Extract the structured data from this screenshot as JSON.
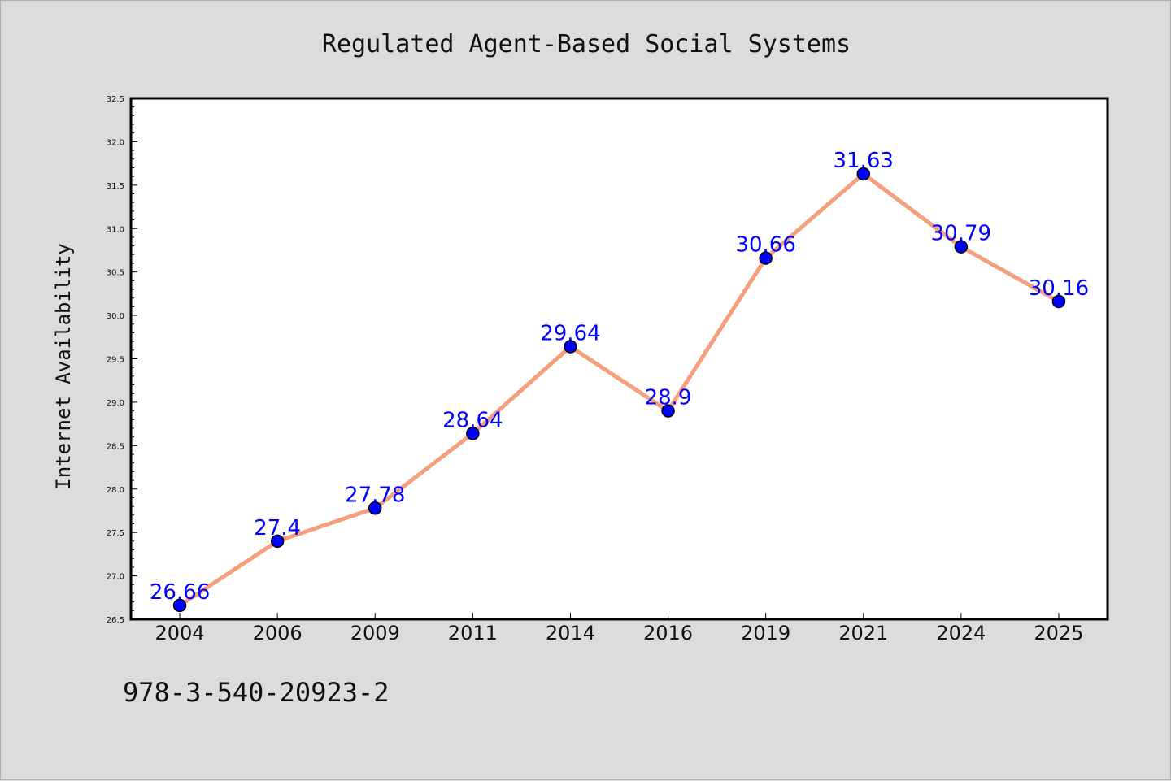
{
  "chart_data": {
    "type": "line",
    "title": "Regulated Agent-Based Social Systems",
    "xlabel": "",
    "ylabel": "Internet Availability",
    "categories": [
      "2004",
      "2006",
      "2009",
      "2011",
      "2014",
      "2016",
      "2019",
      "2021",
      "2024",
      "2025"
    ],
    "values": [
      26.66,
      27.4,
      27.78,
      28.64,
      29.64,
      28.9,
      30.66,
      31.63,
      30.79,
      30.16
    ],
    "data_labels": [
      "26.66",
      "27.4",
      "27.78",
      "28.64",
      "29.64",
      "28.9",
      "30.66",
      "31.63",
      "30.79",
      "30.16"
    ],
    "ylim": [
      26.5,
      32.5
    ],
    "yticks": [
      "26.5",
      "27.0",
      "27.5",
      "28.0",
      "28.5",
      "29.0",
      "29.5",
      "30.0",
      "30.5",
      "31.0",
      "31.5",
      "32.0",
      "32.5"
    ],
    "grid": false,
    "legend": "none",
    "colors": {
      "line": "#f4a07e",
      "marker": "#0000ff",
      "marker_edge": "#000000",
      "data_label": "#0000ff",
      "background": "#dcdcdc",
      "plot_area": "#ffffff"
    }
  },
  "footer": {
    "code": "978-3-540-20923-2"
  }
}
